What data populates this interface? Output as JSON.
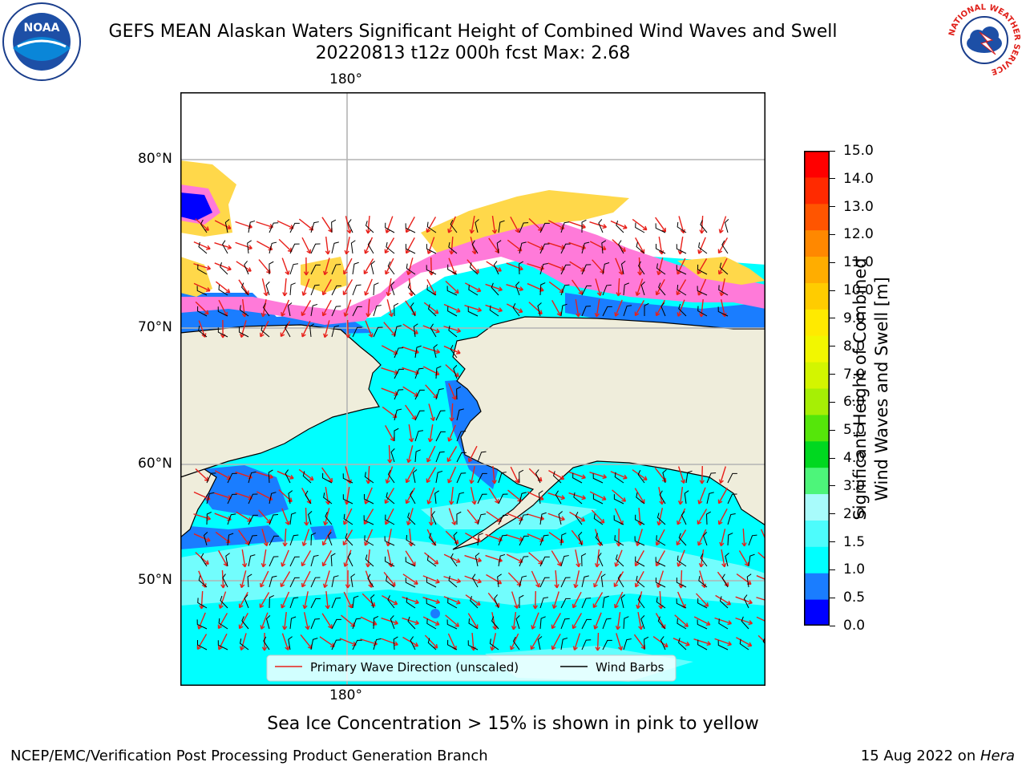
{
  "title": {
    "line1": "GEFS MEAN Alaskan Waters Significant Height of Combined Wind Waves and Swell",
    "line2": "20220813 t12z 000h fcst   Max: 2.68"
  },
  "map": {
    "lon_labels": [
      "180°",
      "180°"
    ],
    "lat_labels": [
      "80°N",
      "70°N",
      "60°N",
      "50°N"
    ],
    "legend": {
      "wave_direction": "Primary Wave Direction (unscaled)",
      "wind_barbs": "Wind Barbs"
    },
    "colors": {
      "land": "#efeddb",
      "ice_pink": "#ff7ad9",
      "ice_yellow": "#ffd84a",
      "arrow": "#e8201a",
      "barb": "#000000"
    }
  },
  "colorbar": {
    "label_line1": "Significant Height of Combined",
    "label_line2": "Wind Waves and Swell [m]",
    "ticks": [
      "15.0",
      "14.0",
      "13.0",
      "12.0",
      "11.0",
      "10.0",
      "9.0",
      "8.0",
      "7.0",
      "6.0",
      "5.0",
      "4.0",
      "3.0",
      "2.0",
      "1.5",
      "1.0",
      "0.5",
      "0.0"
    ],
    "colors": [
      "#0000ff",
      "#1a7dff",
      "#00ffff",
      "#4dfcfc",
      "#a8fbfb",
      "#4df57a",
      "#00d820",
      "#55e60a",
      "#a6ef05",
      "#d3f500",
      "#f2f700",
      "#ffea00",
      "#ffcc00",
      "#ffad00",
      "#ff8800",
      "#ff5500",
      "#ff2a00",
      "#ff0000"
    ]
  },
  "note": "Sea Ice Concentration > 15% is shown in pink to yellow",
  "footer": {
    "left": "NCEP/EMC/Verification Post Processing Product Generation Branch",
    "right_date": "15 Aug 2022 on ",
    "right_host": "Hera"
  },
  "logos": {
    "noaa": "NOAA",
    "nws": "NATIONAL WEATHER SERVICE"
  }
}
